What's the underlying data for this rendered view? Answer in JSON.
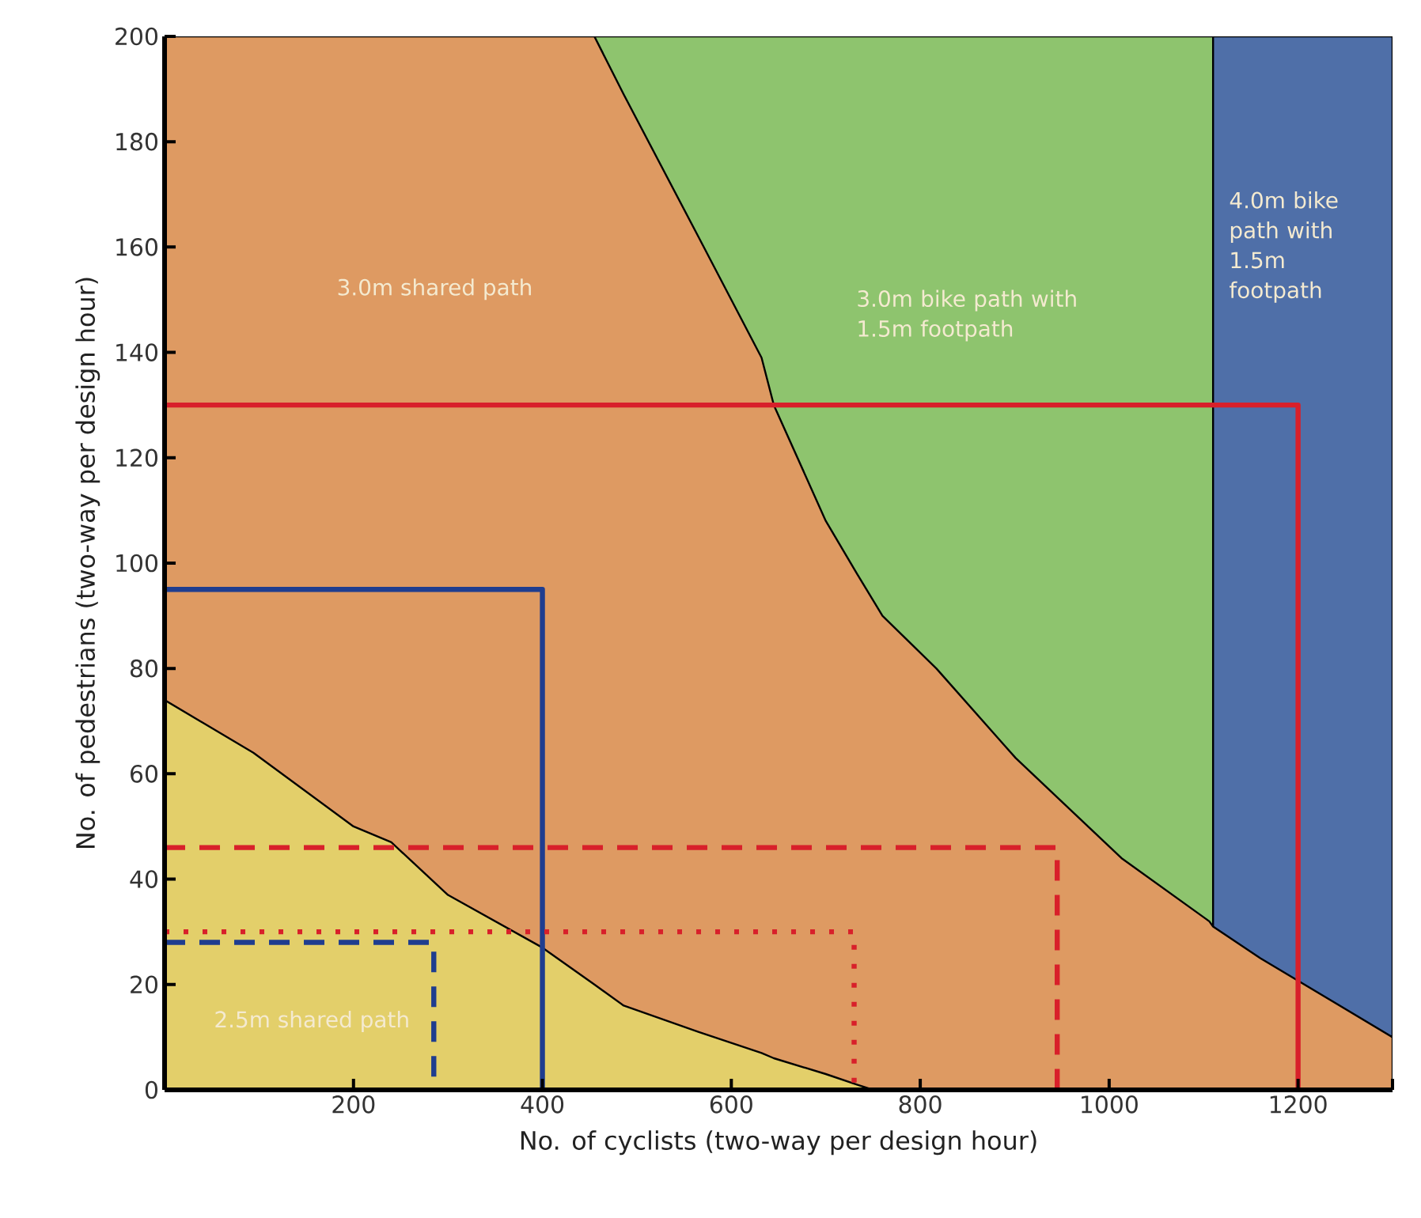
{
  "chart_data": {
    "type": "area",
    "xlabel": "No. of cyclists (two-way per design hour)",
    "ylabel": "No. of pedestrians (two-way per design hour)",
    "xlim": [
      0,
      1300
    ],
    "ylim": [
      0,
      200
    ],
    "xticks": [
      200,
      400,
      600,
      800,
      1000,
      1200,
      {
        "value": 1300,
        "label": null
      }
    ],
    "yticks": [
      0,
      20,
      40,
      60,
      80,
      100,
      120,
      140,
      160,
      180,
      200
    ],
    "grid": false,
    "series": [
      {
        "name": "3.0m bike path with 1.5m footpath",
        "color": "#8ec46e",
        "x": [
          455,
          1110
        ],
        "values": [
          200,
          200
        ]
      },
      {
        "name": "4.0m bike path with 1.5m footpath",
        "color": "#4f6fa8",
        "x": [
          1110,
          1300
        ],
        "values": [
          200,
          200
        ]
      },
      {
        "name": "3.0m shared path",
        "color": "#de9a62",
        "x": [
          0,
          455,
          486,
          565,
          632,
          645,
          700,
          733,
          760,
          817,
          901,
          1013,
          1106,
          1110,
          1160,
          1300
        ],
        "values": [
          200,
          200,
          189,
          162,
          139,
          130,
          108,
          98,
          90,
          80,
          63,
          44,
          32,
          31,
          25,
          10
        ]
      },
      {
        "name": "2.5m shared path",
        "color": "#e3cf6a",
        "x": [
          0,
          94,
          200,
          240,
          300,
          400,
          455,
          486,
          565,
          632,
          645,
          700,
          733,
          750,
          760
        ],
        "values": [
          74,
          64,
          50,
          47,
          37,
          27,
          20,
          16,
          11,
          7,
          6,
          3,
          1,
          0,
          0
        ]
      },
      {
        "type": "line",
        "color": "#d8202a",
        "line_style": "solid",
        "x": [
          0,
          1200,
          1200
        ],
        "values": [
          130,
          130,
          0
        ]
      },
      {
        "type": "line",
        "color": "#1f3d8f",
        "line_style": "solid",
        "x": [
          0,
          400,
          400
        ],
        "values": [
          95,
          95,
          0
        ]
      },
      {
        "type": "line",
        "color": "#d8202a",
        "line_style": "dashed",
        "x": [
          0,
          945,
          945
        ],
        "values": [
          46,
          46,
          0
        ]
      },
      {
        "type": "line",
        "color": "#d8202a",
        "line_style": "dotted",
        "x": [
          0,
          730,
          730
        ],
        "values": [
          30,
          30,
          0
        ]
      },
      {
        "type": "line",
        "color": "#1f3d8f",
        "line_style": "dashed",
        "x": [
          0,
          285,
          285
        ],
        "values": [
          28,
          28,
          0
        ]
      }
    ]
  }
}
